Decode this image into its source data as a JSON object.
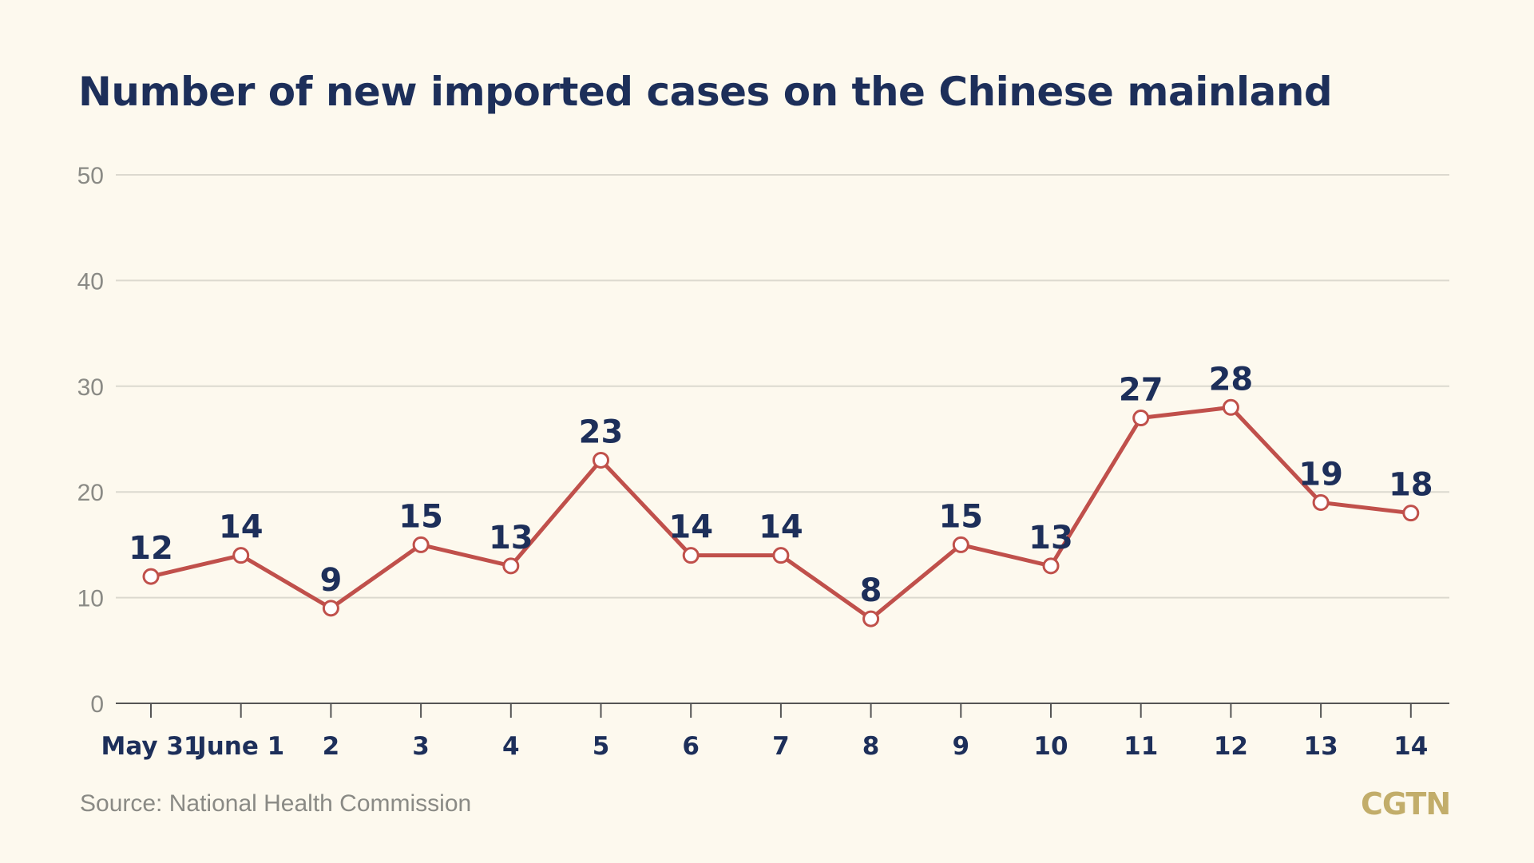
{
  "chart_data": {
    "type": "line",
    "title": "Number of new imported cases on the Chinese mainland",
    "categories": [
      "May 31",
      "June 1",
      "2",
      "3",
      "4",
      "5",
      "6",
      "7",
      "8",
      "9",
      "10",
      "11",
      "12",
      "13",
      "14"
    ],
    "series": [
      {
        "values": [
          12,
          14,
          9,
          15,
          13,
          23,
          14,
          14,
          8,
          15,
          13,
          27,
          28,
          19,
          18
        ]
      }
    ],
    "ylim": [
      0,
      50
    ],
    "yticks": [
      0,
      10,
      20,
      30,
      40,
      50
    ],
    "grid": true,
    "data_labels": true,
    "xlabel": "",
    "ylabel": ""
  },
  "source": "Source: National Health Commission",
  "logo": "CGTN",
  "colors": {
    "background": "#fdf9ee",
    "line": "#c0504b",
    "marker_fill": "#ffffff",
    "title": "#1d2f5a",
    "grid": "#dcd9cf",
    "axis": "#555555",
    "muted_text": "#8a8a85",
    "logo": "#c2ad6a"
  }
}
